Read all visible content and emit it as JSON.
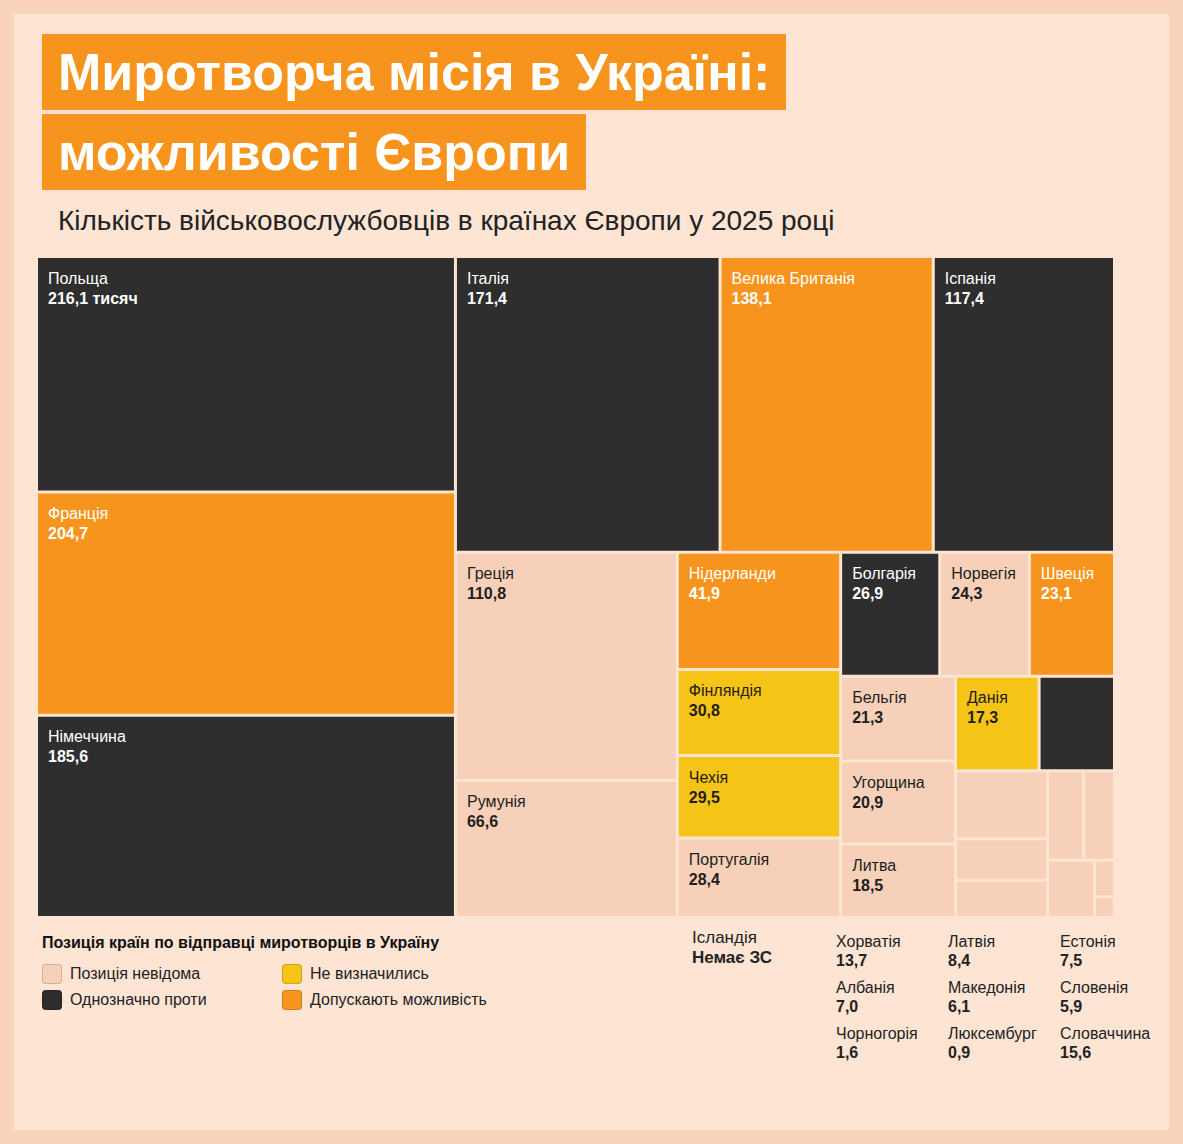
{
  "chart_data": {
    "type": "treemap",
    "title": [
      "Миротворча місія в Україні:",
      "можливості Європи"
    ],
    "subtitle": "Кількість військовослужбовців в країнах Європи у 2025 році",
    "legend": "lower left",
    "legend_title": "Позиція країн по відправці миротворців в Україну",
    "data_labels": true,
    "series": [
      {
        "name": "Позиція невідома",
        "color": "#f6d0b8",
        "categories": [
          "Греція",
          "Румунія",
          "Португалія",
          "Норвегія",
          "Бельгія",
          "Угорщина",
          "Литва",
          "Хорватія",
          "Латвія",
          "Естонія",
          "Албанія",
          "Македонія",
          "Словенія",
          "Чорногорія",
          "Люксембург"
        ],
        "values": [
          110.8,
          66.6,
          28.4,
          24.3,
          21.3,
          20.9,
          18.5,
          13.7,
          8.4,
          7.5,
          7.0,
          6.1,
          5.9,
          1.6,
          0.9
        ],
        "value_labels": [
          "110,8",
          "66,6",
          "28,4",
          "24,3",
          "21,3",
          "20,9",
          "18,5",
          "13,7",
          "8,4",
          "7,5",
          "7,0",
          "6,1",
          "5,9",
          "1,6",
          "0,9"
        ]
      },
      {
        "name": "Однозначно проти",
        "color": "#2e2e2e",
        "categories": [
          "Польща",
          "Німеччина",
          "Італія",
          "Іспанія",
          "Болгарія",
          "Словаччина"
        ],
        "values": [
          216.1,
          185.6,
          171.4,
          117.4,
          26.9,
          15.6
        ],
        "value_labels": [
          "216,1 тисяч",
          "185,6",
          "171,4",
          "117,4",
          "26,9",
          "15,6"
        ]
      },
      {
        "name": "Не визначились",
        "color": "#f6c416",
        "categories": [
          "Фінляндія",
          "Чехія",
          "Данія"
        ],
        "values": [
          30.8,
          29.5,
          17.3
        ],
        "value_labels": [
          "30,8",
          "29,5",
          "17,3"
        ]
      },
      {
        "name": "Допускають можливість",
        "color": "#f7941d",
        "categories": [
          "Франція",
          "Велика Британія",
          "Нідерланди",
          "Швеція"
        ],
        "values": [
          204.7,
          138.1,
          41.9,
          23.1
        ],
        "value_labels": [
          "204,7",
          "138,1",
          "41,9",
          "23,1"
        ]
      }
    ],
    "annotations": [
      {
        "category": "Ісландія",
        "label": "Немає ЗС"
      }
    ]
  }
}
